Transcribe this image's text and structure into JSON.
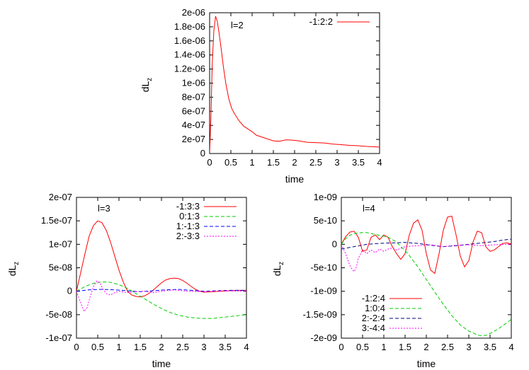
{
  "chart_data": [
    {
      "type": "line",
      "panel_label": "l=2",
      "xlabel": "time",
      "ylabel": "dL",
      "ylabel_sub": "z",
      "xlim": [
        0,
        4
      ],
      "ylim": [
        0,
        2e-06
      ],
      "xticks": [
        0,
        0.5,
        1,
        1.5,
        2,
        2.5,
        3,
        3.5,
        4
      ],
      "xtick_labels": [
        "0",
        "0.5",
        "1",
        "1.5",
        "2",
        "2.5",
        "3",
        "3.5",
        "4"
      ],
      "yticks": [
        0,
        2e-07,
        4e-07,
        6e-07,
        8e-07,
        1e-06,
        1.2e-06,
        1.4e-06,
        1.6e-06,
        1.8e-06,
        2e-06
      ],
      "ytick_labels": [
        "0",
        "2e-07",
        "4e-07",
        "6e-07",
        "8e-07",
        "1e-06",
        "1.2e-06",
        "1.4e-06",
        "1.6e-06",
        "1.8e-06",
        "2e-06"
      ],
      "grid": false,
      "legend_position": "top-right",
      "series": [
        {
          "name": "-1:2:2",
          "color": "#ff0000",
          "dash": "solid",
          "x": [
            0,
            0.03,
            0.06,
            0.1,
            0.14,
            0.18,
            0.22,
            0.27,
            0.32,
            0.38,
            0.45,
            0.52,
            0.6,
            0.7,
            0.8,
            0.9,
            1.0,
            1.1,
            1.2,
            1.35,
            1.5,
            1.65,
            1.8,
            1.95,
            2.1,
            2.3,
            2.5,
            2.7,
            2.9,
            3.1,
            3.3,
            3.5,
            3.7,
            3.9,
            4.0
          ],
          "y": [
            1e-08,
            5e-07,
            1.25e-06,
            1.75e-06,
            1.95e-06,
            1.88e-06,
            1.72e-06,
            1.5e-06,
            1.25e-06,
            1e-06,
            7.8e-07,
            6.4e-07,
            5.5e-07,
            4.6e-07,
            3.9e-07,
            3.5e-07,
            3.1e-07,
            2.6e-07,
            2.4e-07,
            2.1e-07,
            1.8e-07,
            1.75e-07,
            1.95e-07,
            1.9e-07,
            1.8e-07,
            1.6e-07,
            1.55e-07,
            1.5e-07,
            1.35e-07,
            1.25e-07,
            1.15e-07,
            1.1e-07,
            1e-07,
            9.5e-08,
            9e-08
          ]
        }
      ]
    },
    {
      "type": "line",
      "panel_label": "l=3",
      "xlabel": "time",
      "ylabel": "dL",
      "ylabel_sub": "z",
      "xlim": [
        0,
        4
      ],
      "ylim": [
        -1e-07,
        2e-07
      ],
      "xticks": [
        0,
        0.5,
        1,
        1.5,
        2,
        2.5,
        3,
        3.5,
        4
      ],
      "xtick_labels": [
        "0",
        "0.5",
        "1",
        "1.5",
        "2",
        "2.5",
        "3",
        "3.5",
        "4"
      ],
      "yticks": [
        -1e-07,
        -5e-08,
        0,
        5e-08,
        1e-07,
        1.5e-07,
        2e-07
      ],
      "ytick_labels": [
        "-1e-07",
        "-5e-08",
        "0",
        "5e-08",
        "1e-07",
        "1.5e-07",
        "2e-07"
      ],
      "grid": false,
      "legend_position": "top-right",
      "series": [
        {
          "name": "-1:3:3",
          "color": "#ff0000",
          "dash": "solid",
          "x": [
            0,
            0.1,
            0.2,
            0.3,
            0.4,
            0.5,
            0.6,
            0.7,
            0.8,
            0.9,
            1.0,
            1.1,
            1.2,
            1.3,
            1.4,
            1.5,
            1.6,
            1.7,
            1.8,
            1.9,
            2.0,
            2.1,
            2.2,
            2.3,
            2.4,
            2.5,
            2.6,
            2.7,
            2.8,
            2.9,
            3.0,
            3.2,
            3.4,
            3.6,
            3.8,
            4.0
          ],
          "y": [
            0,
            4e-08,
            8e-08,
            1.18e-07,
            1.4e-07,
            1.5e-07,
            1.46e-07,
            1.3e-07,
            1.05e-07,
            7.5e-08,
            4.5e-08,
            2e-08,
            0,
            -8e-09,
            -1.1e-08,
            -1.2e-08,
            -1e-08,
            -5e-09,
            2e-09,
            1e-08,
            1.8e-08,
            2.4e-08,
            2.7e-08,
            2.8e-08,
            2.7e-08,
            2.3e-08,
            1.7e-08,
            1e-08,
            4e-09,
            0,
            -2e-09,
            -1e-09,
            0,
            1e-09,
            2e-09,
            2e-09
          ]
        },
        {
          "name": "0:1:3",
          "color": "#00cc00",
          "dash": "dashed",
          "x": [
            0,
            0.2,
            0.4,
            0.6,
            0.8,
            1.0,
            1.2,
            1.4,
            1.6,
            1.8,
            2.0,
            2.2,
            2.4,
            2.6,
            2.8,
            3.0,
            3.2,
            3.4,
            3.6,
            3.8,
            4.0
          ],
          "y": [
            0,
            1e-08,
            1.7e-08,
            2e-08,
            1.9e-08,
            1.4e-08,
            6e-09,
            -5e-09,
            -1.6e-08,
            -2.7e-08,
            -3.7e-08,
            -4.5e-08,
            -5.1e-08,
            -5.5e-08,
            -5.7e-08,
            -5.8e-08,
            -5.8e-08,
            -5.6e-08,
            -5.4e-08,
            -5.2e-08,
            -5e-08
          ]
        },
        {
          "name": "1:-1:3",
          "color": "#0000ff",
          "dash": "dashed",
          "x": [
            0,
            0.3,
            0.6,
            0.9,
            1.2,
            1.5,
            1.8,
            2.1,
            2.4,
            2.7,
            3.0,
            3.3,
            3.6,
            4.0
          ],
          "y": [
            0,
            3e-09,
            4e-09,
            3e-09,
            1e-09,
            -1e-09,
            1e-09,
            3e-09,
            4e-09,
            2e-09,
            0,
            1e-09,
            2e-09,
            2e-09
          ]
        },
        {
          "name": "2:-3:3",
          "color": "#ff00ff",
          "dash": "dotted",
          "x": [
            0,
            0.1,
            0.18,
            0.25,
            0.32,
            0.4,
            0.48,
            0.55,
            0.62,
            0.7,
            0.8,
            0.9,
            1.0,
            1.2,
            1.4,
            1.6,
            1.8,
            2.0,
            2.3,
            2.6,
            3.0,
            3.5,
            4.0
          ],
          "y": [
            0,
            -2.5e-08,
            -4.3e-08,
            -3.5e-08,
            -1.2e-08,
            1e-08,
            2.2e-08,
            1.8e-08,
            5e-09,
            -5e-09,
            -8e-09,
            -3e-09,
            0,
            -3e-09,
            -1e-09,
            0,
            -3e-09,
            0,
            3e-09,
            0,
            -1e-09,
            1e-09,
            0
          ]
        }
      ]
    },
    {
      "type": "line",
      "panel_label": "l=4",
      "xlabel": "time",
      "ylabel": "dL",
      "ylabel_sub": "z",
      "xlim": [
        0,
        4
      ],
      "ylim": [
        -2e-09,
        1e-09
      ],
      "xticks": [
        0,
        0.5,
        1,
        1.5,
        2,
        2.5,
        3,
        3.5,
        4
      ],
      "xtick_labels": [
        "0",
        "0.5",
        "1",
        "1.5",
        "2",
        "2.5",
        "3",
        "3.5",
        "4"
      ],
      "yticks": [
        -2e-09,
        -1.5e-09,
        -1e-09,
        -5e-10,
        0,
        5e-10,
        1e-09
      ],
      "ytick_labels": [
        "-2e-09",
        "-1.5e-09",
        "-1e-09",
        "-5e-10",
        "0",
        "5e-10",
        "1e-09"
      ],
      "grid": false,
      "legend_position": "bottom-left",
      "series": [
        {
          "name": "-1:2:4",
          "color": "#ff0000",
          "dash": "solid",
          "x": [
            0,
            0.1,
            0.2,
            0.3,
            0.4,
            0.5,
            0.6,
            0.7,
            0.8,
            0.9,
            1.0,
            1.1,
            1.2,
            1.3,
            1.4,
            1.5,
            1.6,
            1.7,
            1.8,
            1.9,
            2.0,
            2.1,
            2.2,
            2.3,
            2.4,
            2.5,
            2.6,
            2.7,
            2.8,
            2.9,
            3.0,
            3.1,
            3.2,
            3.3,
            3.4,
            3.5,
            3.6,
            3.7,
            3.8,
            3.9,
            4.0
          ],
          "y": [
            0,
            1.6e-10,
            2.6e-10,
            2.8e-10,
            1.5e-10,
            -1.5e-10,
            -1.2e-10,
            1.5e-10,
            2e-10,
            1e-10,
            2e-10,
            1.5e-10,
            -5e-11,
            -2e-10,
            -3.2e-10,
            -2e-10,
            2e-10,
            4.5e-10,
            5.2e-10,
            3e-10,
            -2e-10,
            -5.5e-10,
            -6.2e-10,
            -2e-10,
            3e-10,
            5.8e-10,
            6e-10,
            2e-10,
            -2.5e-10,
            -4.8e-10,
            -3.5e-10,
            5e-11,
            2.8e-10,
            2.5e-10,
            -5e-11,
            -1.5e-10,
            -1.2e-10,
            -5e-11,
            2e-11,
            3e-11,
            1e-11
          ]
        },
        {
          "name": "1:0:4",
          "color": "#00cc00",
          "dash": "dashed",
          "x": [
            0,
            0.1,
            0.2,
            0.3,
            0.4,
            0.5,
            0.6,
            0.7,
            0.8,
            0.9,
            1.0,
            1.1,
            1.2,
            1.3,
            1.4,
            1.5,
            1.6,
            1.8,
            2.0,
            2.2,
            2.4,
            2.6,
            2.8,
            3.0,
            3.2,
            3.3,
            3.4,
            3.5,
            3.6,
            3.7,
            3.8,
            3.9,
            4.0
          ],
          "y": [
            0,
            1.2e-10,
            1.9e-10,
            2.3e-10,
            2.4e-10,
            2.5e-10,
            2.5e-10,
            2.3e-10,
            2.1e-10,
            1.9e-10,
            1.7e-10,
            1.5e-10,
            1e-10,
            5e-11,
            -5e-11,
            -1.3e-10,
            -2.4e-10,
            -4.8e-10,
            -7.5e-10,
            -1.02e-09,
            -1.28e-09,
            -1.52e-09,
            -1.72e-09,
            -1.85e-09,
            -1.93e-09,
            -1.95e-09,
            -1.94e-09,
            -1.9e-09,
            -1.85e-09,
            -1.8e-09,
            -1.73e-09,
            -1.67e-09,
            -1.6e-09
          ]
        },
        {
          "name": "2:-2:4",
          "color": "#000080",
          "dash": "dashed",
          "x": [
            0,
            0.3,
            0.6,
            0.9,
            1.2,
            1.5,
            1.8,
            2.1,
            2.4,
            2.7,
            3.0,
            3.3,
            3.6,
            3.8,
            4.0
          ],
          "y": [
            -1e-10,
            -5e-11,
            0,
            2e-11,
            3e-11,
            4e-11,
            2e-11,
            -2e-11,
            -5e-11,
            -3e-11,
            0,
            3e-11,
            6e-11,
            9e-11,
            1.1e-10
          ]
        },
        {
          "name": "3:-4:4",
          "color": "#ff00ff",
          "dash": "dotted",
          "x": [
            0,
            0.1,
            0.2,
            0.25,
            0.3,
            0.35,
            0.4,
            0.5,
            0.6,
            0.7,
            0.8,
            0.9,
            1.0,
            1.1,
            1.2,
            1.3,
            1.5,
            1.8,
            2.1,
            2.4,
            2.7,
            3.0,
            3.3,
            3.6,
            4.0
          ],
          "y": [
            0,
            -2e-10,
            -4.5e-10,
            -5.3e-10,
            -5.8e-10,
            -5e-10,
            -3e-10,
            -1.2e-10,
            -2e-10,
            -1.2e-10,
            -1.8e-10,
            -1e-10,
            -1.5e-10,
            -1e-10,
            -8e-11,
            -1.2e-10,
            -5e-11,
            -3e-11,
            -1e-11,
            -5e-11,
            -2e-11,
            -1e-11,
            -3e-11,
            -1e-11,
            0
          ]
        }
      ]
    }
  ]
}
